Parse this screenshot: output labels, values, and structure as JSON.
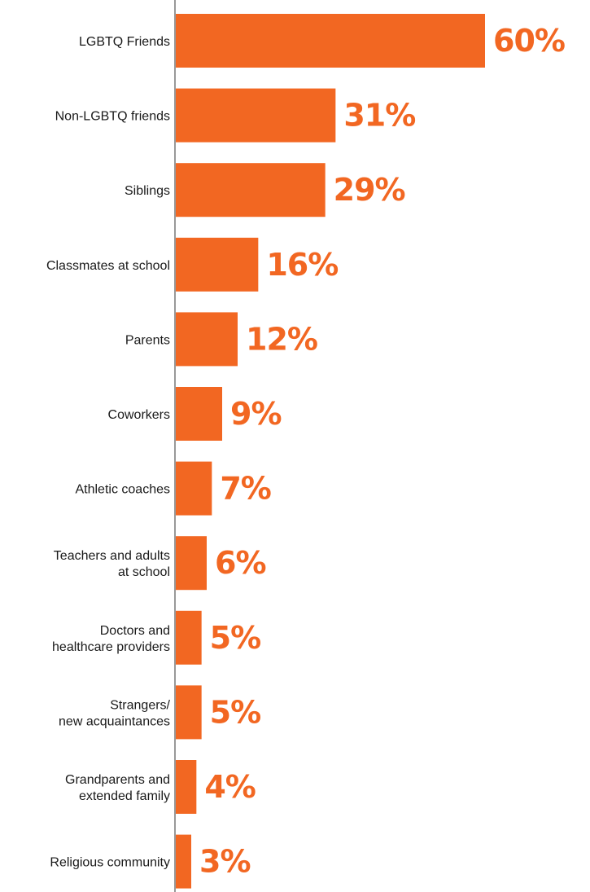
{
  "chart_data": {
    "type": "bar",
    "orientation": "horizontal",
    "categories": [
      [
        "LGBTQ Friends"
      ],
      [
        "Non-LGBTQ friends"
      ],
      [
        "Siblings"
      ],
      [
        "Classmates at school"
      ],
      [
        "Parents"
      ],
      [
        "Coworkers"
      ],
      [
        "Athletic coaches"
      ],
      [
        "Teachers and adults",
        "at school"
      ],
      [
        "Doctors and",
        "healthcare providers"
      ],
      [
        "Strangers/",
        "new acquaintances"
      ],
      [
        "Grandparents and",
        "extended family"
      ],
      [
        "Religious community"
      ]
    ],
    "values": [
      60,
      31,
      29,
      16,
      12,
      9,
      7,
      6,
      5,
      5,
      4,
      3
    ],
    "value_labels": [
      "60%",
      "31%",
      "29%",
      "16%",
      "12%",
      "9%",
      "7%",
      "6%",
      "5%",
      "5%",
      "4%",
      "3%"
    ],
    "xlim": [
      0,
      60
    ],
    "grid": false,
    "legend": "none",
    "bar_color": "#f26722",
    "value_label_color": "#f26722",
    "axis_color": "#333333"
  }
}
